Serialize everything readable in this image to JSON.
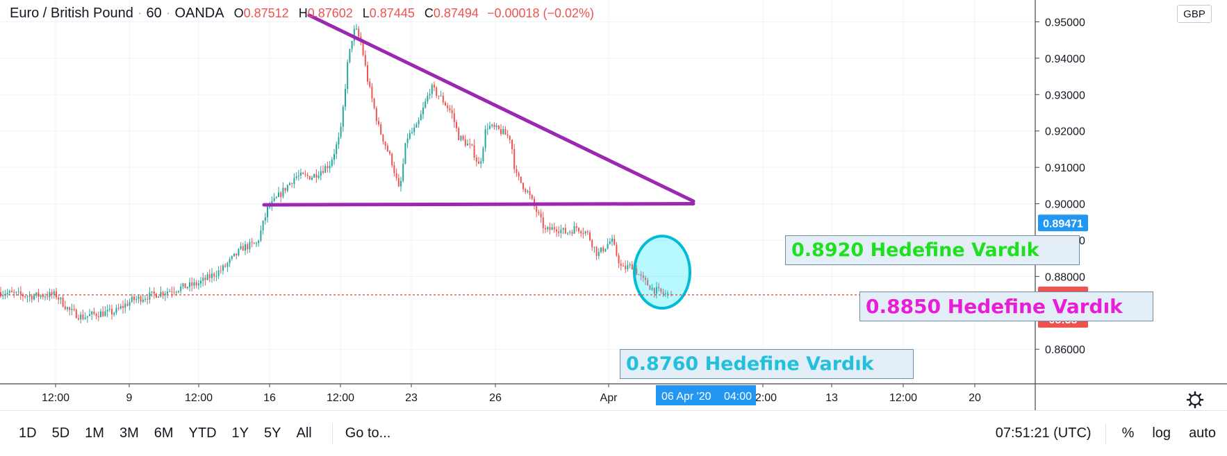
{
  "legend": {
    "symbol": "Euro / British Pound",
    "interval": "60",
    "exchange": "OANDA",
    "open_label": "O",
    "open": "0.87512",
    "high_label": "H",
    "high": "0.87602",
    "low_label": "L",
    "low": "0.87445",
    "close_label": "C",
    "close": "0.87494",
    "change": "−0.00018 (−0.02%)"
  },
  "currency": "GBP",
  "annotations": [
    {
      "text": "0.8920 Hedefine Vardık",
      "color": "#1ee01e"
    },
    {
      "text": "0.8850 Hedefine Vardık",
      "color": "#e81dd8"
    },
    {
      "text": "0.8760 Hedefine Vardık",
      "color": "#22c0dc"
    }
  ],
  "toolbar": {
    "timeframes": [
      "1D",
      "5D",
      "1M",
      "3M",
      "6M",
      "YTD",
      "1Y",
      "5Y",
      "All"
    ],
    "goto": "Go to...",
    "clock": "07:51:21 (UTC)",
    "percent": "%",
    "log": "log",
    "auto": "auto"
  },
  "colors": {
    "up": "#26a69a",
    "down": "#ef5350",
    "pattern": "#9c27b0",
    "circle": "#00bcd4",
    "price_line": "#e53935",
    "crosshair_badge": "#2196f3"
  },
  "chart_data": {
    "type": "candlestick",
    "title": "Euro / British Pound · 60 · OANDA",
    "ylim": [
      0.8505,
      0.956
    ],
    "y_ticks": [
      "0.95000",
      "0.94000",
      "0.93000",
      "0.92000",
      "0.91000",
      "0.90000",
      "0.89000",
      "0.88000",
      "0.86000"
    ],
    "x_ticks": [
      "12:00",
      "9",
      "12:00",
      "16",
      "12:00",
      "23",
      "26",
      "Apr",
      "12:00",
      "13",
      "12:00",
      "20"
    ],
    "x_tick_index": [
      80,
      186,
      286,
      388,
      490,
      592,
      713,
      876,
      1098,
      1197,
      1300,
      1403
    ],
    "x_domain": [
      0,
      1490
    ],
    "price_path": [
      [
        0,
        0.8757
      ],
      [
        40,
        0.8746
      ],
      [
        80,
        0.875
      ],
      [
        100,
        0.8706
      ],
      [
        118,
        0.8688
      ],
      [
        140,
        0.8698
      ],
      [
        165,
        0.8702
      ],
      [
        190,
        0.8735
      ],
      [
        215,
        0.8747
      ],
      [
        245,
        0.8762
      ],
      [
        285,
        0.878
      ],
      [
        320,
        0.882
      ],
      [
        350,
        0.888
      ],
      [
        370,
        0.889
      ],
      [
        385,
        0.8985
      ],
      [
        405,
        0.903
      ],
      [
        425,
        0.9075
      ],
      [
        450,
        0.9075
      ],
      [
        475,
        0.911
      ],
      [
        490,
        0.919
      ],
      [
        500,
        0.938
      ],
      [
        508,
        0.947
      ],
      [
        512,
        0.9478
      ],
      [
        520,
        0.944
      ],
      [
        530,
        0.933
      ],
      [
        545,
        0.921
      ],
      [
        565,
        0.911
      ],
      [
        575,
        0.903
      ],
      [
        585,
        0.918
      ],
      [
        600,
        0.921
      ],
      [
        620,
        0.932
      ],
      [
        635,
        0.929
      ],
      [
        650,
        0.925
      ],
      [
        660,
        0.9185
      ],
      [
        680,
        0.915
      ],
      [
        690,
        0.91
      ],
      [
        700,
        0.9215
      ],
      [
        720,
        0.92
      ],
      [
        735,
        0.918
      ],
      [
        742,
        0.908
      ],
      [
        760,
        0.903
      ],
      [
        772,
        0.898
      ],
      [
        785,
        0.8925
      ],
      [
        800,
        0.8935
      ],
      [
        815,
        0.892
      ],
      [
        830,
        0.8935
      ],
      [
        845,
        0.892
      ],
      [
        860,
        0.886
      ],
      [
        880,
        0.89
      ],
      [
        895,
        0.882
      ],
      [
        910,
        0.883
      ],
      [
        925,
        0.879
      ],
      [
        940,
        0.8765
      ],
      [
        955,
        0.8752
      ],
      [
        966,
        0.8749
      ]
    ],
    "last_candle": {
      "open": 0.87512,
      "high": 0.87602,
      "low": 0.87445,
      "close": 0.87494
    },
    "trendlines": [
      {
        "from": [
          445,
          0.9518
        ],
        "to": [
          998,
          0.9007
        ]
      },
      {
        "from": [
          380,
          0.8997
        ],
        "to": [
          998,
          0.9
        ]
      }
    ],
    "ellipse_center": [
      953,
      0.8812
    ],
    "price_labels": [
      {
        "value": "0.89471",
        "price": 0.89471,
        "color": "#2196f3"
      },
      {
        "value": "0.87494",
        "price": 0.87494,
        "color": "#ef5350"
      },
      {
        "value": "08:38",
        "price": 0.86822,
        "color": "#ef5350"
      }
    ],
    "crosshair": {
      "date": "06 Apr '20",
      "time": "04:00",
      "x": 1002
    },
    "anchor_point": [
      1191,
      0.8862
    ]
  }
}
